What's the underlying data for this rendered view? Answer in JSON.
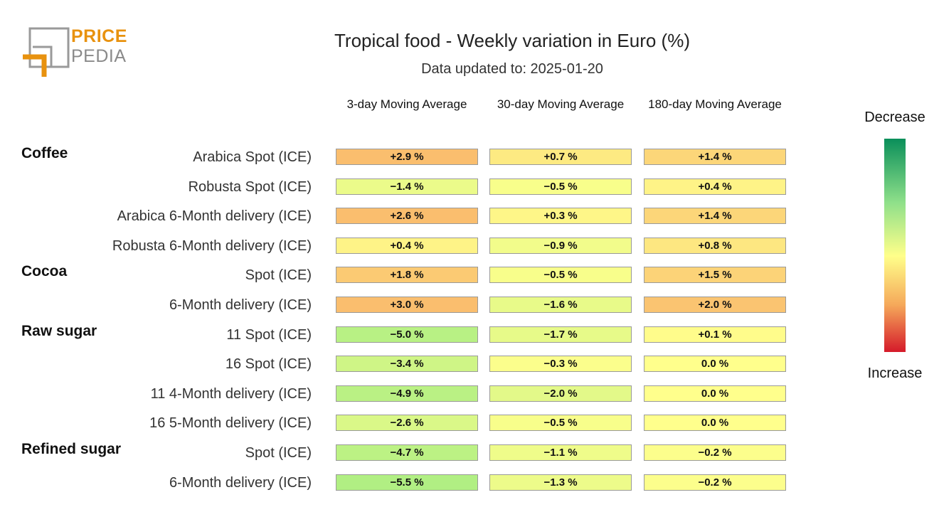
{
  "logo": {
    "word1": "PRICE",
    "word2": "PEDIA"
  },
  "chart_data": {
    "type": "heatmap",
    "title": "Tropical food - Weekly variation in Euro (%)",
    "subtitle": "Data updated to: 2025-01-20",
    "columns": [
      "3-day Moving Average",
      "30-day Moving Average",
      "180-day Moving Average"
    ],
    "colorbar": {
      "top_label": "Decrease",
      "bottom_label": "Increase"
    },
    "rows": [
      {
        "group": "Coffee",
        "label": "Arabica Spot (ICE)",
        "values": [
          2.9,
          0.7,
          1.4
        ],
        "text": [
          "+2.9 %",
          "+0.7 %",
          "+1.4 %"
        ]
      },
      {
        "group": "",
        "label": "Robusta Spot (ICE)",
        "values": [
          -1.4,
          -0.5,
          0.4
        ],
        "text": [
          "−1.4 %",
          "−0.5 %",
          "+0.4 %"
        ]
      },
      {
        "group": "",
        "label": "Arabica 6-Month delivery (ICE)",
        "values": [
          2.6,
          0.3,
          1.4
        ],
        "text": [
          "+2.6 %",
          "+0.3 %",
          "+1.4 %"
        ]
      },
      {
        "group": "",
        "label": "Robusta 6-Month delivery (ICE)",
        "values": [
          0.4,
          -0.9,
          0.8
        ],
        "text": [
          "+0.4 %",
          "−0.9 %",
          "+0.8 %"
        ]
      },
      {
        "group": "Cocoa",
        "label": "Spot (ICE)",
        "values": [
          1.8,
          -0.5,
          1.5
        ],
        "text": [
          "+1.8 %",
          "−0.5 %",
          "+1.5 %"
        ]
      },
      {
        "group": "",
        "label": "6-Month delivery (ICE)",
        "values": [
          3.0,
          -1.6,
          2.0
        ],
        "text": [
          "+3.0 %",
          "−1.6 %",
          "+2.0 %"
        ]
      },
      {
        "group": "Raw sugar",
        "label": "11 Spot (ICE)",
        "values": [
          -5.0,
          -1.7,
          0.1
        ],
        "text": [
          "−5.0 %",
          "−1.7 %",
          "+0.1 %"
        ]
      },
      {
        "group": "",
        "label": "16 Spot (ICE)",
        "values": [
          -3.4,
          -0.3,
          0.0
        ],
        "text": [
          "−3.4 %",
          "−0.3 %",
          "0.0 %"
        ]
      },
      {
        "group": "",
        "label": "11 4-Month delivery (ICE)",
        "values": [
          -4.9,
          -2.0,
          0.0
        ],
        "text": [
          "−4.9 %",
          "−2.0 %",
          "0.0 %"
        ]
      },
      {
        "group": "",
        "label": "16 5-Month delivery (ICE)",
        "values": [
          -2.6,
          -0.5,
          0.0
        ],
        "text": [
          "−2.6 %",
          "−0.5 %",
          "0.0 %"
        ]
      },
      {
        "group": "Refined sugar",
        "label": "Spot (ICE)",
        "values": [
          -4.7,
          -1.1,
          -0.2
        ],
        "text": [
          "−4.7 %",
          "−1.1 %",
          "−0.2 %"
        ]
      },
      {
        "group": "",
        "label": "6-Month delivery (ICE)",
        "values": [
          -5.5,
          -1.3,
          -0.2
        ],
        "text": [
          "−5.5 %",
          "−1.3 %",
          "−0.2 %"
        ]
      }
    ]
  }
}
